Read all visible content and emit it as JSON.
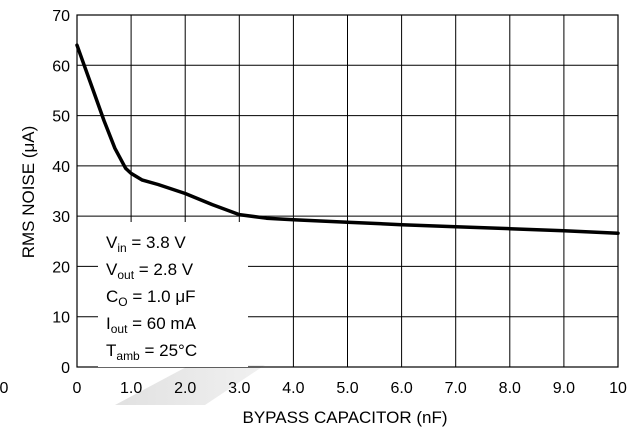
{
  "chart_data": {
    "type": "line",
    "title": "",
    "xlabel": "BYPASS CAPACITOR (nF)",
    "ylabel": "RMS NOISE (μA)",
    "xlim": [
      0,
      10
    ],
    "ylim": [
      0,
      70
    ],
    "x_ticks": [
      "0",
      "1.0",
      "2.0",
      "3.0",
      "4.0",
      "5.0",
      "6.0",
      "7.0",
      "8.0",
      "9.0",
      "10"
    ],
    "y_ticks": [
      "0",
      "10",
      "20",
      "30",
      "40",
      "50",
      "60",
      "70"
    ],
    "left_edge_label": "0",
    "grid": true,
    "series": [
      {
        "x": [
          0,
          0.1,
          0.3,
          0.5,
          0.7,
          0.9,
          1.0,
          1.2,
          1.5,
          2.0,
          2.5,
          3.0,
          3.5,
          4.0,
          5.0,
          6.0,
          7.0,
          8.0,
          9.0,
          10.0
        ],
        "y": [
          64,
          61,
          55,
          49,
          43.5,
          39.5,
          38.5,
          37.2,
          36.3,
          34.5,
          32.3,
          30.3,
          29.6,
          29.3,
          28.8,
          28.3,
          27.9,
          27.5,
          27.1,
          26.6
        ],
        "color": "#000000"
      }
    ],
    "conditions": {
      "vin": {
        "sym": "V",
        "sub": "in",
        "rest": " = 3.8 V"
      },
      "vout": {
        "sym": "V",
        "sub": "out",
        "rest": " = 2.8 V"
      },
      "co": {
        "sym": "C",
        "sub": "O",
        "rest": " = 1.0 μF"
      },
      "iout": {
        "sym": "I",
        "sub": "out",
        "rest": " = 60 mA"
      },
      "tamb": {
        "sym": "T",
        "sub": "amb",
        "rest": " = 25°C"
      }
    }
  }
}
